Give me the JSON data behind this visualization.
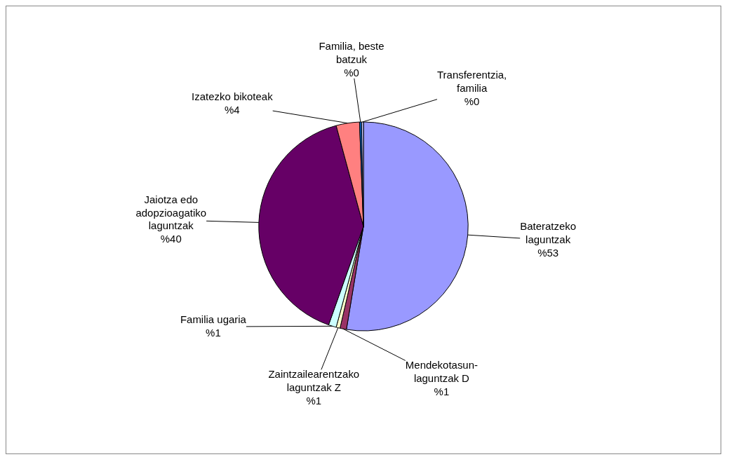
{
  "chart_data": {
    "type": "pie",
    "categories": [
      "Bateratzeko laguntzak",
      "Mendekotasun-laguntzak D",
      "Zaintzailearentzako laguntzak Z",
      "Familia ugaria",
      "Jaiotza edo adopzioagatiko laguntzak",
      "Izatezko bikoteak",
      "Familia, beste batzuk",
      "Transferentzia, familia"
    ],
    "values": [
      52.6,
      1.0,
      0.6,
      1.2,
      40.4,
      3.6,
      0.3,
      0.3
    ],
    "value_labels": [
      "%53",
      "%1",
      "%1",
      "%1",
      "%40",
      "%4",
      "%0",
      "%0"
    ],
    "colors": [
      "#9999ff",
      "#993366",
      "#ffffcc",
      "#ccffff",
      "#660066",
      "#ff8080",
      "#0066cc",
      "#ccccff"
    ],
    "legend": false
  }
}
